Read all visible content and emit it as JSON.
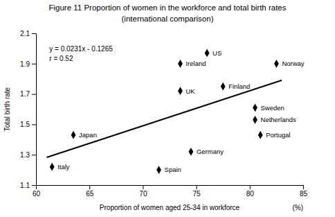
{
  "chart_data": {
    "type": "scatter",
    "title": "Figure 11  Proportion of women in the workforce and total birth rates",
    "subtitle": "(international comparison)",
    "x_label": "Proportion of women aged 25-34 in workforce",
    "x_unit_label": "(%)",
    "y_label": "Total birth rate",
    "xlim": [
      60,
      85
    ],
    "ylim": [
      1.1,
      2.1
    ],
    "xticks": [
      60,
      65,
      70,
      75,
      80,
      85
    ],
    "yticks": [
      1.1,
      1.3,
      1.5,
      1.7,
      1.9,
      2.1
    ],
    "grid": false,
    "annotations": [
      "y = 0.0231x - 0.1265",
      "r = 0.52"
    ],
    "series": [
      {
        "type": "scatter",
        "marker": "diamond",
        "color": "#000000",
        "labels": [
          "Italy",
          "Japan",
          "Spain",
          "UK",
          "Ireland",
          "Germany",
          "US",
          "Finland",
          "Sweden",
          "Netherlands",
          "Portugal",
          "Norway"
        ],
        "x": [
          61.5,
          63.5,
          71.5,
          73.5,
          73.5,
          74.5,
          76.0,
          77.5,
          80.5,
          80.5,
          81.0,
          82.5
        ],
        "values": [
          1.22,
          1.43,
          1.2,
          1.72,
          1.9,
          1.32,
          1.97,
          1.75,
          1.61,
          1.53,
          1.43,
          1.9
        ]
      },
      {
        "type": "line",
        "color": "#000000",
        "x": [
          61.0,
          83.0
        ],
        "values": [
          1.2826,
          1.7908
        ]
      }
    ]
  }
}
